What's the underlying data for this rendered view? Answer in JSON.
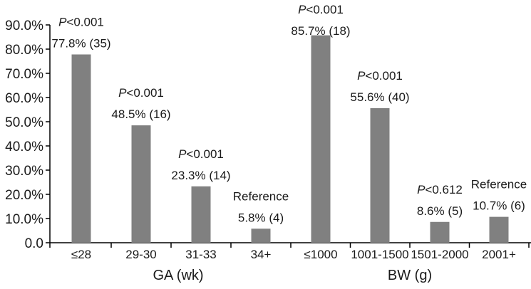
{
  "chart_data": {
    "type": "bar",
    "title": "",
    "ylabel": "",
    "ylim": [
      0,
      90
    ],
    "y_ticks": [
      "0.0",
      "10.0%",
      "20.0%",
      "30.0%",
      "40.0%",
      "50.0%",
      "60.0%",
      "70.0%",
      "80.0%",
      "90.0%"
    ],
    "grid": false,
    "legend": "none",
    "bar_color": "#808080",
    "groups": [
      {
        "label": "GA (wk)",
        "categories": [
          "≤28",
          "29-30",
          "31-33",
          "34+"
        ]
      },
      {
        "label": "BW (g)",
        "categories": [
          "≤1000",
          "1001-1500",
          "1501-2000",
          "2001+"
        ]
      }
    ],
    "categories": [
      "≤28",
      "29-30",
      "31-33",
      "34+",
      "≤1000",
      "1001-1500",
      "1501-2000",
      "2001+"
    ],
    "values": [
      77.8,
      48.5,
      23.3,
      5.8,
      85.7,
      55.6,
      8.6,
      10.7
    ],
    "annotations": [
      {
        "p_italic": "P",
        "p_rest": "<0.001",
        "text": "77.8% (35)"
      },
      {
        "p_italic": "P",
        "p_rest": "<0.001",
        "text": "48.5% (16)"
      },
      {
        "p_italic": "P",
        "p_rest": "<0.001",
        "text": "23.3% (14)"
      },
      {
        "p_italic": "",
        "p_rest": "Reference",
        "text": "5.8% (4)"
      },
      {
        "p_italic": "P",
        "p_rest": "<0.001",
        "text": "85.7% (18)"
      },
      {
        "p_italic": "P",
        "p_rest": "<0.001",
        "text": "55.6% (40)"
      },
      {
        "p_italic": "P",
        "p_rest": "<0.612",
        "text": "8.6% (5)"
      },
      {
        "p_italic": "",
        "p_rest": "Reference",
        "text": "10.7% (6)"
      }
    ]
  }
}
